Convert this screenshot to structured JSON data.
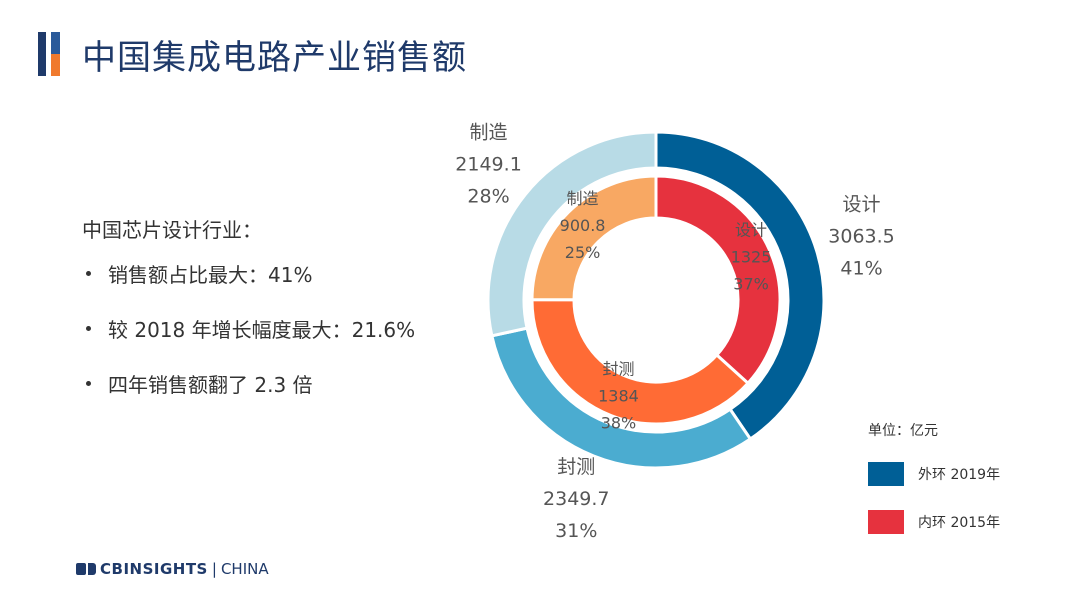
{
  "title": "中国集成电路产业销售额",
  "notes": {
    "heading": "中国芯片设计行业：",
    "bullets": [
      "销售额占比最大：41%",
      "较 2018 年增长幅度最大：21.6%",
      "四年销售额翻了 2.3 倍"
    ]
  },
  "legend": {
    "unit": "单位：亿元",
    "outer_label": "外环 2019年",
    "inner_label": "内环 2015年",
    "outer_color": "#005f96",
    "inner_color": "#e6323e"
  },
  "logo": {
    "brand": "CBINSIGHTS",
    "separator": "|",
    "region": "CHINA"
  },
  "chart_data": {
    "type": "pie",
    "subtype": "nested-donut",
    "rings": [
      {
        "ring": "outer",
        "name": "外环 2019年",
        "slices": [
          {
            "label": "设计",
            "value": 3063.5,
            "value_text": "3063.5",
            "percent": "41%",
            "color": "#005f96"
          },
          {
            "label": "封测",
            "value": 2349.7,
            "value_text": "2349.7",
            "percent": "31%",
            "color": "#4bacd0"
          },
          {
            "label": "制造",
            "value": 2149.1,
            "value_text": "2149.1",
            "percent": "28%",
            "color": "#b8dbe6"
          }
        ]
      },
      {
        "ring": "inner",
        "name": "内环 2015年",
        "slices": [
          {
            "label": "设计",
            "value": 1325,
            "value_text": "1325",
            "percent": "37%",
            "color": "#e6323e"
          },
          {
            "label": "封测",
            "value": 1384,
            "value_text": "1384",
            "percent": "38%",
            "color": "#ff6b35"
          },
          {
            "label": "制造",
            "value": 900.8,
            "value_text": "900.8",
            "percent": "25%",
            "color": "#f8a863"
          }
        ]
      }
    ]
  }
}
